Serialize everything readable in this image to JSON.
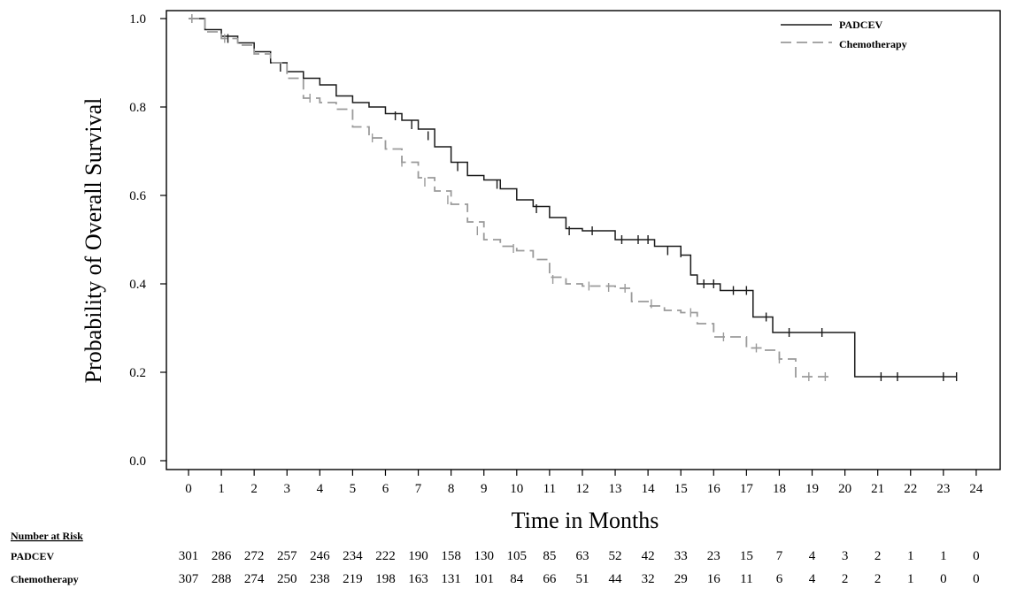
{
  "chart_data": {
    "type": "line",
    "ylabel": "Probability of Overall Survival",
    "xlabel": "Time in Months",
    "xlim": [
      0,
      24
    ],
    "ylim": [
      0,
      1
    ],
    "x_ticks": [
      "0",
      "1",
      "2",
      "3",
      "4",
      "5",
      "6",
      "7",
      "8",
      "9",
      "10",
      "11",
      "12",
      "13",
      "14",
      "15",
      "16",
      "17",
      "18",
      "19",
      "20",
      "21",
      "22",
      "23",
      "24"
    ],
    "y_ticks": [
      "0.0",
      "0.2",
      "0.4",
      "0.6",
      "0.8",
      "1.0"
    ],
    "legend_position": "top-right",
    "series": [
      {
        "name": "PADCEV",
        "color": "#1a1a1a",
        "dash": "solid",
        "points": [
          [
            0,
            1.0
          ],
          [
            0.5,
            0.975
          ],
          [
            1,
            0.96
          ],
          [
            1.5,
            0.945
          ],
          [
            2,
            0.925
          ],
          [
            2.5,
            0.9
          ],
          [
            3,
            0.88
          ],
          [
            3.5,
            0.865
          ],
          [
            4,
            0.85
          ],
          [
            4.5,
            0.825
          ],
          [
            5,
            0.81
          ],
          [
            5.5,
            0.8
          ],
          [
            6,
            0.785
          ],
          [
            6.5,
            0.77
          ],
          [
            7,
            0.75
          ],
          [
            7.5,
            0.71
          ],
          [
            8,
            0.675
          ],
          [
            8.5,
            0.645
          ],
          [
            9,
            0.635
          ],
          [
            9.5,
            0.615
          ],
          [
            10,
            0.59
          ],
          [
            10.5,
            0.575
          ],
          [
            11,
            0.55
          ],
          [
            11.5,
            0.525
          ],
          [
            12,
            0.52
          ],
          [
            13,
            0.5
          ],
          [
            14,
            0.5
          ],
          [
            14.2,
            0.485
          ],
          [
            15,
            0.465
          ],
          [
            15.3,
            0.42
          ],
          [
            15.5,
            0.4
          ],
          [
            16,
            0.4
          ],
          [
            16.2,
            0.385
          ],
          [
            17,
            0.385
          ],
          [
            17.2,
            0.325
          ],
          [
            17.8,
            0.325
          ],
          [
            17.8,
            0.29
          ],
          [
            20.3,
            0.29
          ],
          [
            20.3,
            0.19
          ],
          [
            23.4,
            0.19
          ]
        ],
        "censor_marks": [
          [
            0.1,
            1.0
          ],
          [
            1.2,
            0.955
          ],
          [
            2.8,
            0.89
          ],
          [
            6.3,
            0.78
          ],
          [
            6.8,
            0.76
          ],
          [
            7.3,
            0.735
          ],
          [
            8.2,
            0.665
          ],
          [
            9.4,
            0.625
          ],
          [
            10.6,
            0.57
          ],
          [
            11.6,
            0.52
          ],
          [
            12.3,
            0.52
          ],
          [
            13.2,
            0.5
          ],
          [
            13.7,
            0.5
          ],
          [
            14.0,
            0.5
          ],
          [
            14.6,
            0.475
          ],
          [
            15.0,
            0.47
          ],
          [
            15.7,
            0.4
          ],
          [
            16.0,
            0.4
          ],
          [
            16.6,
            0.385
          ],
          [
            17.0,
            0.385
          ],
          [
            17.6,
            0.325
          ],
          [
            18.3,
            0.29
          ],
          [
            19.3,
            0.29
          ],
          [
            21.1,
            0.19
          ],
          [
            21.6,
            0.19
          ],
          [
            23.0,
            0.19
          ],
          [
            23.4,
            0.19
          ]
        ]
      },
      {
        "name": "Chemotherapy",
        "color": "#9a9a9a",
        "dash": "dashed",
        "points": [
          [
            0,
            1.0
          ],
          [
            0.5,
            0.97
          ],
          [
            1,
            0.955
          ],
          [
            1.5,
            0.94
          ],
          [
            2,
            0.92
          ],
          [
            2.5,
            0.9
          ],
          [
            3,
            0.865
          ],
          [
            3.5,
            0.82
          ],
          [
            4,
            0.81
          ],
          [
            4.5,
            0.795
          ],
          [
            5,
            0.755
          ],
          [
            5.5,
            0.73
          ],
          [
            6,
            0.705
          ],
          [
            6.5,
            0.675
          ],
          [
            7,
            0.64
          ],
          [
            7.5,
            0.61
          ],
          [
            8,
            0.58
          ],
          [
            8.5,
            0.54
          ],
          [
            9,
            0.5
          ],
          [
            9.5,
            0.485
          ],
          [
            10,
            0.475
          ],
          [
            10.5,
            0.455
          ],
          [
            11,
            0.415
          ],
          [
            11.5,
            0.4
          ],
          [
            12,
            0.395
          ],
          [
            13,
            0.39
          ],
          [
            13.5,
            0.36
          ],
          [
            14,
            0.35
          ],
          [
            14.5,
            0.34
          ],
          [
            15,
            0.335
          ],
          [
            15.5,
            0.31
          ],
          [
            16,
            0.28
          ],
          [
            16.5,
            0.28
          ],
          [
            17,
            0.255
          ],
          [
            17.5,
            0.25
          ],
          [
            18,
            0.23
          ],
          [
            18.5,
            0.19
          ],
          [
            19.5,
            0.19
          ]
        ],
        "censor_marks": [
          [
            0.1,
            1.0
          ],
          [
            1.1,
            0.955
          ],
          [
            3.7,
            0.82
          ],
          [
            5.6,
            0.73
          ],
          [
            6.5,
            0.675
          ],
          [
            7.2,
            0.63
          ],
          [
            7.9,
            0.59
          ],
          [
            8.8,
            0.52
          ],
          [
            9.9,
            0.48
          ],
          [
            11.1,
            0.41
          ],
          [
            12.2,
            0.395
          ],
          [
            12.8,
            0.392
          ],
          [
            13.3,
            0.39
          ],
          [
            14.1,
            0.355
          ],
          [
            15.3,
            0.335
          ],
          [
            16.3,
            0.28
          ],
          [
            17.3,
            0.255
          ],
          [
            18.0,
            0.23
          ],
          [
            18.9,
            0.19
          ],
          [
            19.4,
            0.19
          ]
        ]
      }
    ]
  },
  "risk_table": {
    "header": "Number  at Risk",
    "rows": [
      {
        "label": "PADCEV",
        "values": [
          "301",
          "286",
          "272",
          "257",
          "246",
          "234",
          "222",
          "190",
          "158",
          "130",
          "105",
          "85",
          "63",
          "52",
          "42",
          "33",
          "23",
          "15",
          "7",
          "4",
          "3",
          "2",
          "1",
          "1",
          "0"
        ]
      },
      {
        "label": "Chemotherapy",
        "values": [
          "307",
          "288",
          "274",
          "250",
          "238",
          "219",
          "198",
          "163",
          "131",
          "101",
          "84",
          "66",
          "51",
          "44",
          "32",
          "29",
          "16",
          "11",
          "6",
          "4",
          "2",
          "2",
          "1",
          "0",
          "0"
        ]
      }
    ]
  }
}
